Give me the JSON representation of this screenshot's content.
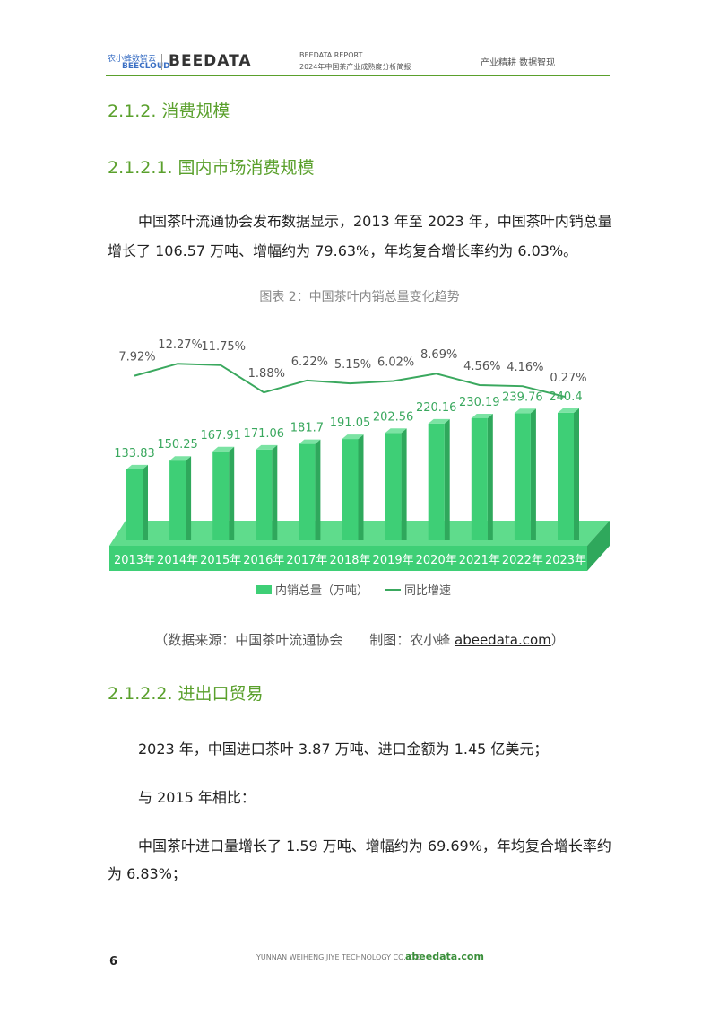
{
  "header": {
    "brand_cn": "农小蜂数智云",
    "brand_en": "BEECLOUD",
    "brand": "BEEDATA",
    "report": "BEEDATA REPORT",
    "report_title": "2024年中国茶产业成熟度分析简报",
    "slogan": "产业精耕 数据智现"
  },
  "heading1": "2.1.2. 消费规模",
  "heading2": "2.1.2.1. 国内市场消费规模",
  "paragraph1": [
    "中国茶叶流通协会发布数据显示，2013 年至 2023 年，中国茶叶内销总量",
    "增长了 106.57 万吨、增幅约为 79.63%，年均复合增长率约为 6.03%。"
  ],
  "chart_data": {
    "type": "bar",
    "title": "图表 2：中国茶叶内销总量变化趋势",
    "categories": [
      "2013年",
      "2014年",
      "2015年",
      "2016年",
      "2017年",
      "2018年",
      "2019年",
      "2020年",
      "2021年",
      "2022年",
      "2023年"
    ],
    "series": [
      {
        "name": "内销总量（万吨）",
        "type": "bar",
        "color": "#3ecf76",
        "values": [
          133.83,
          150.25,
          167.91,
          171.06,
          181.7,
          191.05,
          202.56,
          220.16,
          230.19,
          239.76,
          240.4
        ]
      },
      {
        "name": "同比增速",
        "type": "line",
        "color": "#3aa85e",
        "values": [
          7.92,
          12.27,
          11.75,
          1.88,
          6.22,
          5.15,
          6.02,
          8.69,
          4.56,
          4.16,
          0.27
        ],
        "value_labels": [
          "7.92%",
          "12.27%",
          "11.75%",
          "1.88%",
          "6.22%",
          "5.15%",
          "6.02%",
          "8.69%",
          "4.56%",
          "4.16%",
          "0.27%"
        ]
      }
    ]
  },
  "source": {
    "prefix": "（数据来源：中国茶叶流通协会　　制图：农小蜂 ",
    "link": "abeedata.com",
    "suffix": "）"
  },
  "heading3": "2.1.2.2. 进出口贸易",
  "paragraph2": "2023 年，中国进口茶叶 3.87 万吨、进口金额为 1.45 亿美元；",
  "paragraph3": "与 2015 年相比：",
  "paragraph4": [
    "中国茶叶进口量增长了 1.59 万吨、增幅约为 69.69%，年均复合增长率约",
    "为 6.83%；"
  ],
  "footer": {
    "page": "6",
    "company": "YUNNAN WEIHENG JIYE TECHNOLOGY CO.,LTD.",
    "site": "abeedata.com"
  }
}
